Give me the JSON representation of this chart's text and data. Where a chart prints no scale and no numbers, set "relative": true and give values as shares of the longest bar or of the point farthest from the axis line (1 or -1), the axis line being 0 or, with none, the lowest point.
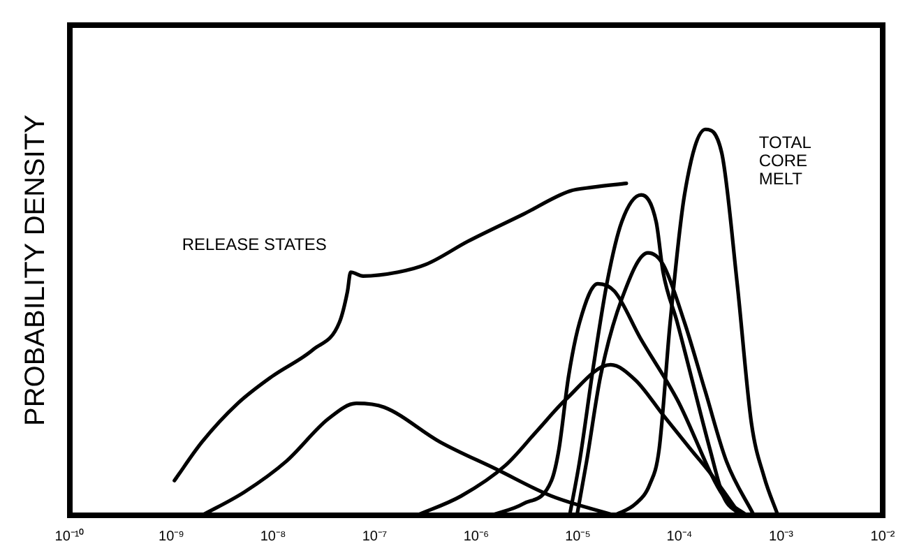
{
  "chart_data": {
    "type": "line",
    "relative": true,
    "log": "x",
    "marker": "none",
    "ylabel": "PROBABILITY DENSITY",
    "xlim": [
      1e-10,
      0.01
    ],
    "xticks": [
      {
        "value": 1e-10,
        "label": "10⁻¹⁰"
      },
      {
        "value": 1e-09,
        "label": "10⁻⁹"
      },
      {
        "value": 1e-08,
        "label": "10⁻⁸"
      },
      {
        "value": 1e-07,
        "label": "10⁻⁷"
      },
      {
        "value": 1e-06,
        "label": "10⁻⁶"
      },
      {
        "value": 1e-05,
        "label": "10⁻⁵"
      },
      {
        "value": 0.0001,
        "label": "10⁻⁴"
      },
      {
        "value": 0.001,
        "label": "10⁻³"
      },
      {
        "value": 0.01,
        "label": "10⁻²"
      }
    ],
    "annotations": [
      "RELEASE STATES",
      "TOTAL\nCORE\nMELT"
    ],
    "series": [
      {
        "color": "#000000",
        "x": [
          1.07e-09,
          2e-09,
          4.5e-09,
          9.8e-09,
          2.5e-08,
          4.5e-08,
          5.4e-08,
          5.8e-08,
          7.7e-08,
          1.7e-07,
          3.2e-07,
          8.3e-07,
          2.9e-06,
          8.3e-06,
          1.4e-05,
          3e-05
        ],
        "values": [
          0.09,
          0.19,
          0.29,
          0.36,
          0.43,
          0.5,
          0.58,
          0.63,
          0.62,
          0.63,
          0.65,
          0.71,
          0.78,
          0.84,
          0.85,
          0.86
        ]
      },
      {
        "color": "#000000",
        "x": [
          2e-09,
          5.2e-09,
          1.35e-08,
          3.5e-08,
          6.6e-08,
          1.24e-07,
          4.4e-07,
          1.56e-06,
          5.5e-06,
          2.3e-05
        ],
        "values": [
          0,
          0.06,
          0.14,
          0.25,
          0.29,
          0.28,
          0.19,
          0.12,
          0.05,
          0
        ]
      },
      {
        "color": "#000000",
        "x": [
          2.6e-07,
          7.1e-07,
          1.95e-06,
          4e-06,
          7.6e-06,
          2.1e-05,
          3.7e-05,
          6.9e-05,
          0.00013,
          0.0002,
          0.0004
        ],
        "values": [
          0,
          0.05,
          0.13,
          0.22,
          0.3,
          0.39,
          0.35,
          0.26,
          0.17,
          0.11,
          0
        ]
      },
      {
        "color": "#000000",
        "x": [
          1.4e-06,
          2.9e-06,
          5.5e-06,
          6.5e-06,
          8.1e-06,
          1.04e-05,
          1.57e-05,
          2.3e-05,
          4.1e-05,
          9.5e-05,
          0.00027,
          0.00046
        ],
        "values": [
          0,
          0.03,
          0.09,
          0.17,
          0.36,
          0.5,
          0.6,
          0.58,
          0.46,
          0.3,
          0.05,
          0
        ]
      },
      {
        "color": "#000000",
        "x": [
          8.3e-06,
          1.04e-05,
          1.43e-05,
          1.96e-05,
          2.7e-05,
          4.2e-05,
          5.9e-05,
          6.9e-05,
          9.5e-05,
          0.0002,
          0.00027,
          0.0004
        ],
        "values": [
          0,
          0.14,
          0.39,
          0.61,
          0.76,
          0.83,
          0.76,
          0.63,
          0.5,
          0.17,
          0.05,
          0
        ]
      },
      {
        "color": "#000000",
        "x": [
          9.8e-06,
          1.22e-05,
          1.67e-05,
          2.7e-05,
          4.9e-05,
          6.9e-05,
          0.000112,
          0.00018,
          0.00029,
          0.00054
        ],
        "values": [
          0,
          0.14,
          0.36,
          0.56,
          0.68,
          0.65,
          0.5,
          0.32,
          0.14,
          0
        ]
      },
      {
        "color": "#000000",
        "x": [
          2.3e-05,
          3.7e-05,
          5.1e-05,
          6.3e-05,
          8.1e-05,
          0.000112,
          0.00018,
          0.00026,
          0.00037,
          0.00051,
          0.00068,
          0.00093
        ],
        "values": [
          0,
          0.03,
          0.08,
          0.17,
          0.5,
          0.83,
          1,
          0.94,
          0.6,
          0.24,
          0.1,
          0
        ]
      }
    ]
  }
}
